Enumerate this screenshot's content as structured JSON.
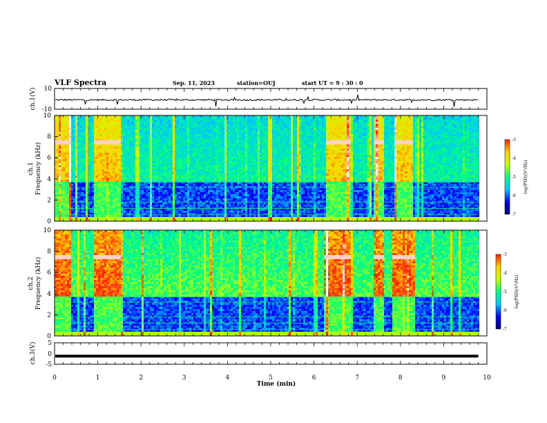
{
  "header": {
    "title": "VLF Spectra",
    "date": "Sep. 11, 2023",
    "station": "station=OUJ",
    "start": "start  UT =   9 : 30 : 0"
  },
  "colors": {
    "trace": "#000000",
    "colormap": [
      "#00007a",
      "#0000ff",
      "#00c8ff",
      "#00ff80",
      "#c8ff00",
      "#ffd000",
      "#ff2000",
      "#ffffff"
    ]
  },
  "chart_data": [
    {
      "type": "line",
      "panel": "ch1-waveform",
      "ylabel": "ch.1(V)",
      "ylim": [
        -10,
        10
      ],
      "yticks": [
        "10",
        "-10"
      ],
      "xlim": [
        0,
        10
      ],
      "baseline": -1,
      "description": "noisy waveform centred near -1 V with short spikes"
    },
    {
      "type": "heatmap",
      "panel": "ch1-spectrogram",
      "ylabel": "ch.1\nFrequency (kHz)",
      "ylim": [
        0,
        10
      ],
      "yticks": [
        "0",
        "2",
        "4",
        "6",
        "8",
        "10"
      ],
      "xlim": [
        0,
        9.8
      ],
      "colorbar": {
        "label": "log(PSD)(V²/Hz)",
        "range": [
          -7,
          -3
        ],
        "ticks": [
          "-3",
          "-4",
          "-5",
          "-6",
          "-7"
        ]
      },
      "strong_intervals_min": [
        [
          0,
          0.35
        ],
        [
          0.9,
          1.5
        ],
        [
          6.25,
          6.85
        ],
        [
          7.35,
          7.6
        ],
        [
          7.85,
          8.25
        ]
      ],
      "line_khz": 7.6
    },
    {
      "type": "heatmap",
      "panel": "ch2-spectrogram",
      "ylabel": "ch.2\nFrequency (kHz)",
      "ylim": [
        0,
        10
      ],
      "yticks": [
        "0",
        "2",
        "4",
        "6",
        "8",
        "10"
      ],
      "xlim": [
        0,
        9.8
      ],
      "colorbar": {
        "label": "log(PSD)(V²/Hz)",
        "range": [
          -7,
          -3
        ],
        "ticks": [
          "-3",
          "-4",
          "-5",
          "-6",
          "-7"
        ]
      },
      "strong_intervals_min": [
        [
          0,
          0.35
        ],
        [
          0.9,
          1.5
        ],
        [
          6.2,
          6.85
        ],
        [
          7.35,
          7.6
        ],
        [
          7.8,
          8.3
        ]
      ],
      "line_khz": 7.6
    },
    {
      "type": "line",
      "panel": "ch3-waveform",
      "ylabel": "ch.3(V)",
      "ylim": [
        -5,
        5
      ],
      "yticks": [
        "5",
        "0",
        "-5"
      ],
      "xlim": [
        0,
        10
      ],
      "baseline": -1.2,
      "xlabel": "Time  (min)",
      "xticks": [
        "0",
        "1",
        "2",
        "3",
        "4",
        "5",
        "6",
        "7",
        "8",
        "9",
        "10"
      ]
    }
  ]
}
